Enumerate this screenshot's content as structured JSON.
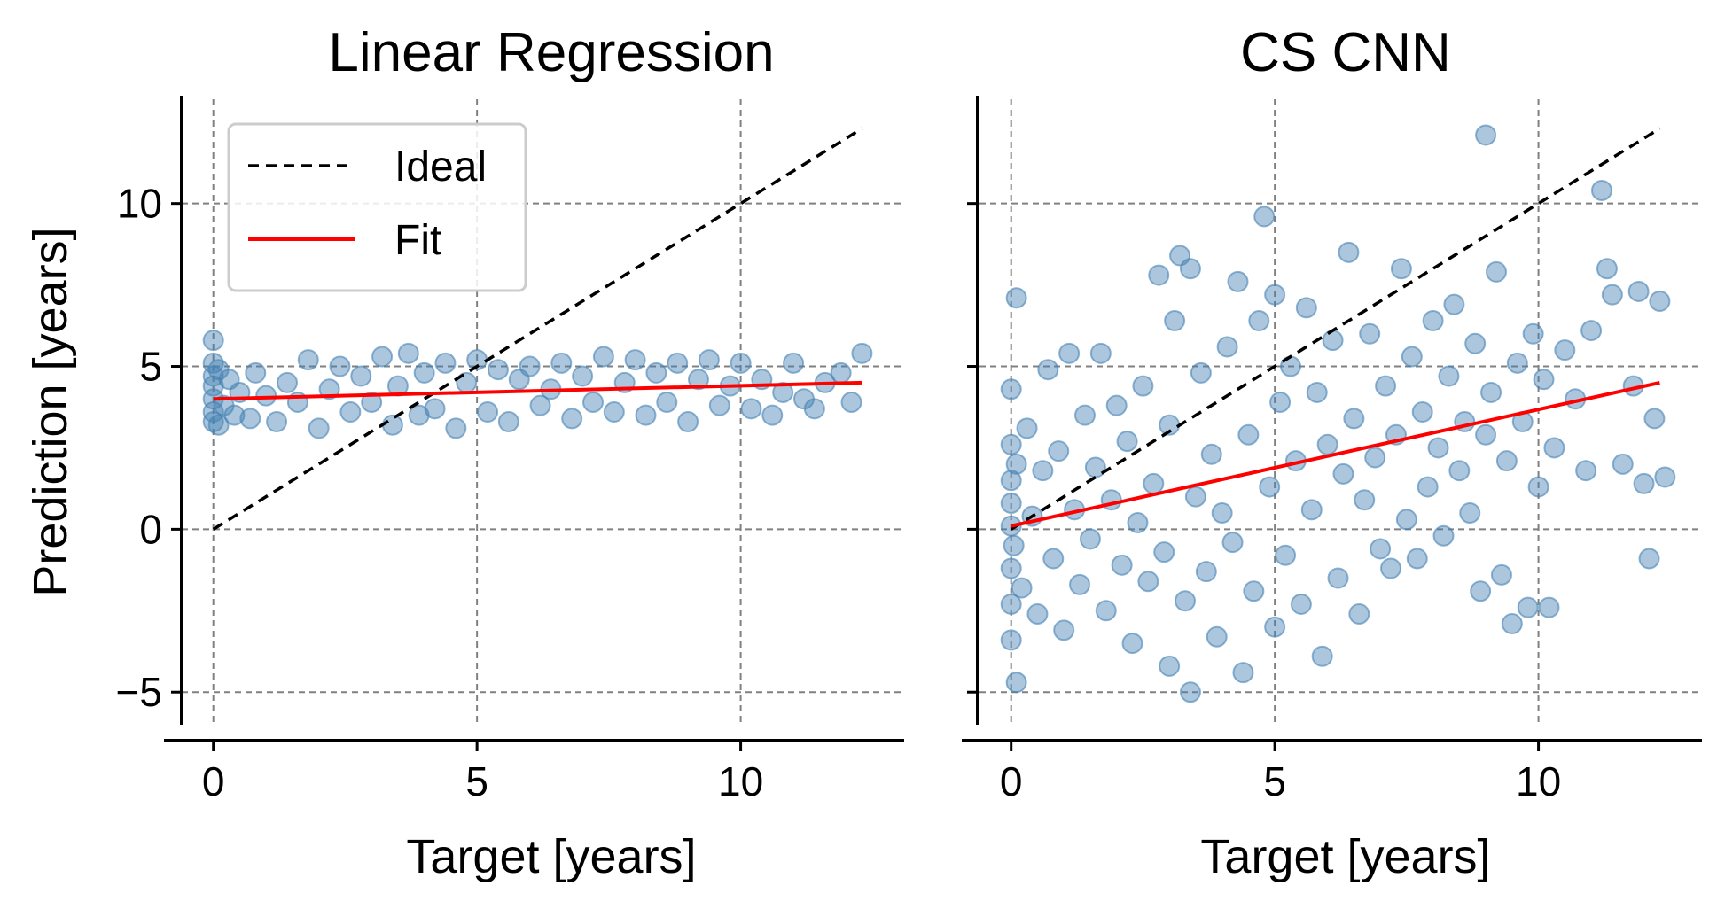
{
  "chart_data": [
    {
      "type": "scatter",
      "title": "Linear Regression",
      "xlabel": "Target [years]",
      "ylabel": "Prediction [years]",
      "xlim": [
        -0.6,
        13.1
      ],
      "ylim": [
        -6.0,
        13.2
      ],
      "xticks": [
        0,
        5,
        10
      ],
      "xtick_labels": [
        "0",
        "5",
        "10"
      ],
      "yticks": [
        -5,
        0,
        5,
        10
      ],
      "ytick_labels": [
        "−5",
        "0",
        "5",
        "10"
      ],
      "grid": true,
      "legend": {
        "placement": "upper-left",
        "entries": [
          {
            "label": "Ideal",
            "style": "dashed",
            "color": "#000000"
          },
          {
            "label": "Fit",
            "style": "solid",
            "color": "#ff0000"
          }
        ]
      },
      "scatter_color": "#4682b4",
      "ideal_line": {
        "x": [
          0,
          12.3
        ],
        "y": [
          0,
          12.3
        ]
      },
      "fit_line": {
        "x": [
          0,
          12.3
        ],
        "y": [
          4.0,
          4.5
        ]
      },
      "points": [
        [
          0,
          4.0
        ],
        [
          0,
          3.3
        ],
        [
          0,
          4.7
        ],
        [
          0,
          5.1
        ],
        [
          0,
          5.8
        ],
        [
          0,
          3.6
        ],
        [
          0,
          4.4
        ],
        [
          0.1,
          3.2
        ],
        [
          0.1,
          4.9
        ],
        [
          0.2,
          3.8
        ],
        [
          0.3,
          4.6
        ],
        [
          0.4,
          3.5
        ],
        [
          0.5,
          4.2
        ],
        [
          0.7,
          3.4
        ],
        [
          0.8,
          4.8
        ],
        [
          1.0,
          4.1
        ],
        [
          1.2,
          3.3
        ],
        [
          1.4,
          4.5
        ],
        [
          1.6,
          3.9
        ],
        [
          1.8,
          5.2
        ],
        [
          2.0,
          3.1
        ],
        [
          2.2,
          4.3
        ],
        [
          2.4,
          5.0
        ],
        [
          2.6,
          3.6
        ],
        [
          2.8,
          4.7
        ],
        [
          3.0,
          3.9
        ],
        [
          3.2,
          5.3
        ],
        [
          3.4,
          3.2
        ],
        [
          3.5,
          4.4
        ],
        [
          3.7,
          5.4
        ],
        [
          3.9,
          3.5
        ],
        [
          4.0,
          4.8
        ],
        [
          4.2,
          3.7
        ],
        [
          4.4,
          5.1
        ],
        [
          4.6,
          3.1
        ],
        [
          4.8,
          4.5
        ],
        [
          5.0,
          5.2
        ],
        [
          5.2,
          3.6
        ],
        [
          5.4,
          4.9
        ],
        [
          5.6,
          3.3
        ],
        [
          5.8,
          4.6
        ],
        [
          6.0,
          5.0
        ],
        [
          6.2,
          3.8
        ],
        [
          6.4,
          4.3
        ],
        [
          6.6,
          5.1
        ],
        [
          6.8,
          3.4
        ],
        [
          7.0,
          4.7
        ],
        [
          7.2,
          3.9
        ],
        [
          7.4,
          5.3
        ],
        [
          7.6,
          3.6
        ],
        [
          7.8,
          4.5
        ],
        [
          8.0,
          5.2
        ],
        [
          8.2,
          3.5
        ],
        [
          8.4,
          4.8
        ],
        [
          8.6,
          3.9
        ],
        [
          8.8,
          5.1
        ],
        [
          9.0,
          3.3
        ],
        [
          9.2,
          4.6
        ],
        [
          9.4,
          5.2
        ],
        [
          9.6,
          3.8
        ],
        [
          9.8,
          4.4
        ],
        [
          10.0,
          5.1
        ],
        [
          10.2,
          3.7
        ],
        [
          10.4,
          4.6
        ],
        [
          10.6,
          3.5
        ],
        [
          10.8,
          4.2
        ],
        [
          11.0,
          5.1
        ],
        [
          11.2,
          4.0
        ],
        [
          11.4,
          3.7
        ],
        [
          11.6,
          4.5
        ],
        [
          11.9,
          4.8
        ],
        [
          12.1,
          3.9
        ],
        [
          12.3,
          5.4
        ]
      ]
    },
    {
      "type": "scatter",
      "title": "CS CNN",
      "xlabel": "Target [years]",
      "ylabel": "",
      "xlim": [
        -0.6,
        13.1
      ],
      "ylim": [
        -6.0,
        13.2
      ],
      "xticks": [
        0,
        5,
        10
      ],
      "xtick_labels": [
        "0",
        "5",
        "10"
      ],
      "yticks": [
        -5,
        0,
        5,
        10
      ],
      "ytick_labels": [
        "",
        "",
        "",
        ""
      ],
      "grid": true,
      "scatter_color": "#4682b4",
      "ideal_line": {
        "x": [
          0,
          12.3
        ],
        "y": [
          0,
          12.3
        ]
      },
      "fit_line": {
        "x": [
          0,
          12.3
        ],
        "y": [
          0.1,
          4.5
        ]
      },
      "points": [
        [
          0,
          0.1
        ],
        [
          0,
          1.5
        ],
        [
          0,
          -1.2
        ],
        [
          0,
          2.6
        ],
        [
          0,
          -2.3
        ],
        [
          0,
          0.8
        ],
        [
          0,
          -3.4
        ],
        [
          0,
          4.3
        ],
        [
          0.05,
          -0.5
        ],
        [
          0.1,
          7.1
        ],
        [
          0.1,
          -4.7
        ],
        [
          0.1,
          2.0
        ],
        [
          0.2,
          -1.8
        ],
        [
          0.3,
          3.1
        ],
        [
          0.4,
          0.4
        ],
        [
          0.5,
          -2.6
        ],
        [
          0.6,
          1.8
        ],
        [
          0.7,
          4.9
        ],
        [
          0.8,
          -0.9
        ],
        [
          0.9,
          2.4
        ],
        [
          1.0,
          -3.1
        ],
        [
          1.1,
          5.4
        ],
        [
          1.2,
          0.6
        ],
        [
          1.3,
          -1.7
        ],
        [
          1.4,
          3.5
        ],
        [
          1.5,
          -0.3
        ],
        [
          1.6,
          1.9
        ],
        [
          1.7,
          5.4
        ],
        [
          1.8,
          -2.5
        ],
        [
          1.9,
          0.9
        ],
        [
          2.0,
          3.8
        ],
        [
          2.1,
          -1.1
        ],
        [
          2.2,
          2.7
        ],
        [
          2.3,
          -3.5
        ],
        [
          2.4,
          0.2
        ],
        [
          2.5,
          4.4
        ],
        [
          2.6,
          -1.6
        ],
        [
          2.7,
          1.4
        ],
        [
          2.8,
          7.8
        ],
        [
          2.9,
          -0.7
        ],
        [
          3.0,
          3.2
        ],
        [
          3.0,
          -4.2
        ],
        [
          3.1,
          6.4
        ],
        [
          3.2,
          8.4
        ],
        [
          3.3,
          -2.2
        ],
        [
          3.4,
          -5.0
        ],
        [
          3.4,
          8.0
        ],
        [
          3.5,
          1.0
        ],
        [
          3.6,
          4.8
        ],
        [
          3.7,
          -1.3
        ],
        [
          3.8,
          2.3
        ],
        [
          3.9,
          -3.3
        ],
        [
          4.0,
          0.5
        ],
        [
          4.1,
          5.6
        ],
        [
          4.2,
          -0.4
        ],
        [
          4.3,
          7.6
        ],
        [
          4.4,
          -4.4
        ],
        [
          4.5,
          2.9
        ],
        [
          4.6,
          -1.9
        ],
        [
          4.7,
          6.4
        ],
        [
          4.8,
          9.6
        ],
        [
          4.9,
          1.3
        ],
        [
          5.0,
          -3.0
        ],
        [
          5.0,
          7.2
        ],
        [
          5.1,
          3.9
        ],
        [
          5.2,
          -0.8
        ],
        [
          5.3,
          5.0
        ],
        [
          5.4,
          2.1
        ],
        [
          5.5,
          -2.3
        ],
        [
          5.6,
          6.8
        ],
        [
          5.7,
          0.6
        ],
        [
          5.8,
          4.2
        ],
        [
          5.9,
          -3.9
        ],
        [
          6.0,
          2.6
        ],
        [
          6.1,
          5.8
        ],
        [
          6.2,
          -1.5
        ],
        [
          6.3,
          1.7
        ],
        [
          6.4,
          8.5
        ],
        [
          6.5,
          3.4
        ],
        [
          6.6,
          -2.6
        ],
        [
          6.7,
          0.9
        ],
        [
          6.8,
          6.0
        ],
        [
          6.9,
          2.2
        ],
        [
          7.0,
          -0.6
        ],
        [
          7.1,
          4.4
        ],
        [
          7.2,
          -1.2
        ],
        [
          7.3,
          2.9
        ],
        [
          7.4,
          8.0
        ],
        [
          7.5,
          0.3
        ],
        [
          7.6,
          5.3
        ],
        [
          7.7,
          -0.9
        ],
        [
          7.8,
          3.6
        ],
        [
          7.9,
          1.3
        ],
        [
          8.0,
          6.4
        ],
        [
          8.1,
          2.5
        ],
        [
          8.2,
          -0.2
        ],
        [
          8.3,
          4.7
        ],
        [
          8.4,
          6.9
        ],
        [
          8.5,
          1.8
        ],
        [
          8.6,
          3.3
        ],
        [
          8.7,
          0.5
        ],
        [
          8.8,
          5.7
        ],
        [
          8.9,
          -1.9
        ],
        [
          9.0,
          12.1
        ],
        [
          9.0,
          2.9
        ],
        [
          9.1,
          4.2
        ],
        [
          9.2,
          7.9
        ],
        [
          9.3,
          -1.4
        ],
        [
          9.4,
          2.1
        ],
        [
          9.5,
          -2.9
        ],
        [
          9.6,
          5.1
        ],
        [
          9.7,
          3.3
        ],
        [
          9.8,
          -2.4
        ],
        [
          9.9,
          6.0
        ],
        [
          10.0,
          1.3
        ],
        [
          10.1,
          4.6
        ],
        [
          10.2,
          -2.4
        ],
        [
          10.3,
          2.5
        ],
        [
          10.5,
          5.5
        ],
        [
          10.7,
          4.0
        ],
        [
          10.9,
          1.8
        ],
        [
          11.0,
          6.1
        ],
        [
          11.2,
          10.4
        ],
        [
          11.3,
          8.0
        ],
        [
          11.4,
          7.2
        ],
        [
          11.6,
          2.0
        ],
        [
          11.8,
          4.4
        ],
        [
          11.9,
          7.3
        ],
        [
          12.0,
          1.4
        ],
        [
          12.1,
          -0.9
        ],
        [
          12.2,
          3.4
        ],
        [
          12.3,
          7.0
        ],
        [
          12.4,
          1.6
        ]
      ]
    }
  ]
}
